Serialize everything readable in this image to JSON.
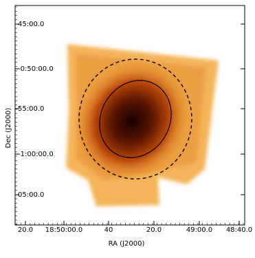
{
  "image": {
    "x_label": "RA (J2000)",
    "y_label": "Dec (J2000)",
    "x_tick_labels": [
      "20.0",
      "18:50:00.0",
      "40",
      "20.0",
      "49:00.0",
      "48:40.0"
    ],
    "y_tick_labels": [
      "45:00.0",
      "-0:50:00.0",
      "55:00.0",
      "-1:00:00.0",
      "05:00.0"
    ]
  }
}
